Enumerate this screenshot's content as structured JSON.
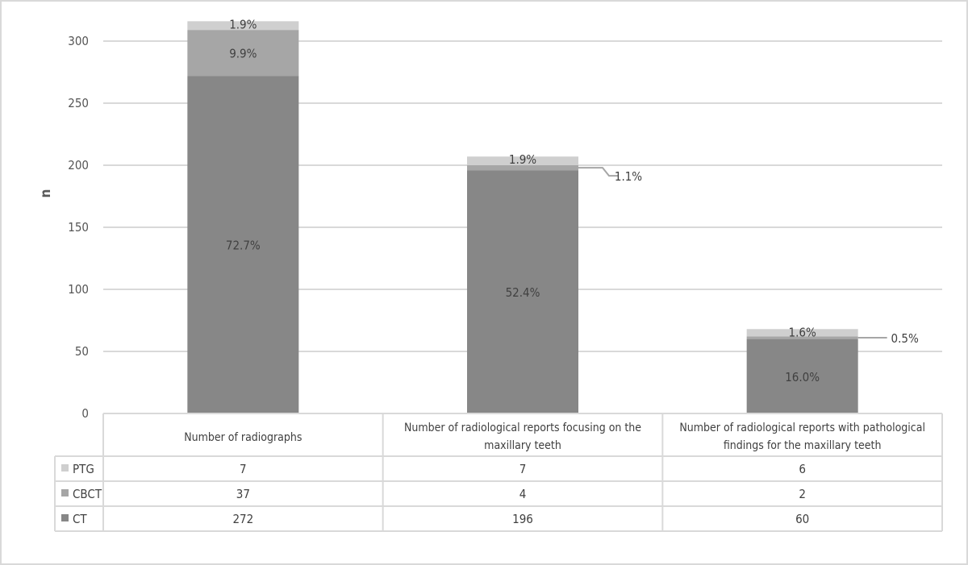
{
  "chart_data": {
    "type": "bar",
    "stacked": true,
    "ylabel": "n",
    "ylim": [
      0,
      300
    ],
    "yticks": [
      0,
      50,
      100,
      150,
      200,
      250,
      300
    ],
    "grid": true,
    "categories": [
      [
        "Number of radiographs"
      ],
      [
        "Number of radiological reports focusing on the",
        "maxillary teeth"
      ],
      [
        "Number of radiological reports with pathological",
        "findings for the maxillary teeth"
      ]
    ],
    "series": [
      {
        "name": "CT",
        "values": [
          272,
          196,
          60
        ],
        "labels": [
          "72.7%",
          "52.4%",
          "16.0%"
        ],
        "color": "#878787"
      },
      {
        "name": "CBCT",
        "values": [
          37,
          4,
          2
        ],
        "labels": [
          "9.9%",
          "1.1%",
          "0.5%"
        ],
        "color": "#a6a6a6"
      },
      {
        "name": "PTG",
        "values": [
          7,
          7,
          6
        ],
        "labels": [
          "1.9%",
          "1.9%",
          "1.6%"
        ],
        "color": "#cfcfcf"
      }
    ],
    "legend_order": [
      "PTG",
      "CBCT",
      "CT"
    ],
    "legend": "data-table"
  }
}
